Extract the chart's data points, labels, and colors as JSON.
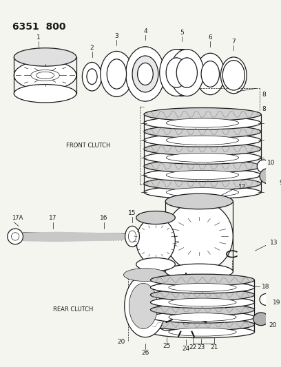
{
  "title": "6351  800",
  "bg_color": "#f5f5f0",
  "line_color": "#1a1a1a",
  "fig_width": 4.08,
  "fig_height": 5.33,
  "dpi": 100,
  "front_clutch_label": "FRONT CLUTCH",
  "rear_clutch_label": "REAR CLUTCH",
  "title_fontsize": 10,
  "label_fontsize": 6,
  "part_label_fontsize": 6.5
}
